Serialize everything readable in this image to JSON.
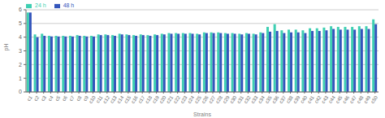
{
  "chart_data": {
    "type": "bar",
    "xlabel": "Strains",
    "ylabel": "pH",
    "categories": [
      "c1",
      "c2",
      "c3",
      "c4",
      "c5",
      "c6",
      "c7",
      "c8",
      "c9",
      "c10",
      "c11",
      "c12",
      "c13",
      "c14",
      "c15",
      "c16",
      "c17",
      "c18",
      "c19",
      "c20",
      "c21",
      "c22",
      "c23",
      "c24",
      "c25",
      "c26",
      "c27",
      "c28",
      "c29",
      "c30",
      "c31",
      "c32",
      "c33",
      "c34",
      "c35",
      "c36",
      "c37",
      "c38",
      "c39",
      "c40",
      "c41",
      "c42",
      "c43",
      "c44",
      "c45",
      "c46",
      "c47",
      "c48",
      "c49",
      "c50"
    ],
    "series": [
      {
        "name": "24 h",
        "color": "#3ECFB2",
        "values": [
          5.8,
          4.2,
          4.25,
          4.1,
          4.1,
          4.1,
          4.1,
          4.15,
          4.1,
          4.1,
          4.2,
          4.2,
          4.15,
          4.25,
          4.2,
          4.15,
          4.2,
          4.15,
          4.2,
          4.25,
          4.3,
          4.3,
          4.3,
          4.3,
          4.25,
          4.35,
          4.35,
          4.35,
          4.3,
          4.3,
          4.25,
          4.3,
          4.25,
          4.35,
          4.75,
          4.95,
          4.5,
          4.55,
          4.55,
          4.5,
          4.65,
          4.65,
          4.7,
          4.8,
          4.75,
          4.75,
          4.75,
          4.8,
          4.8,
          5.3
        ]
      },
      {
        "name": "48 h",
        "color": "#3355BB",
        "values": [
          5.8,
          4.0,
          4.1,
          4.05,
          4.05,
          4.05,
          4.05,
          4.1,
          4.05,
          4.05,
          4.15,
          4.15,
          4.1,
          4.2,
          4.15,
          4.1,
          4.15,
          4.1,
          4.15,
          4.2,
          4.25,
          4.25,
          4.25,
          4.25,
          4.2,
          4.3,
          4.3,
          4.3,
          4.25,
          4.25,
          4.2,
          4.25,
          4.2,
          4.3,
          4.4,
          4.45,
          4.3,
          4.35,
          4.35,
          4.3,
          4.45,
          4.45,
          4.5,
          4.6,
          4.55,
          4.55,
          4.55,
          4.6,
          4.6,
          4.95
        ]
      }
    ],
    "ylim": [
      0,
      6
    ],
    "yticks": [
      0,
      1,
      2,
      3,
      4,
      5,
      6
    ],
    "grid": true,
    "legend": "upper left"
  }
}
